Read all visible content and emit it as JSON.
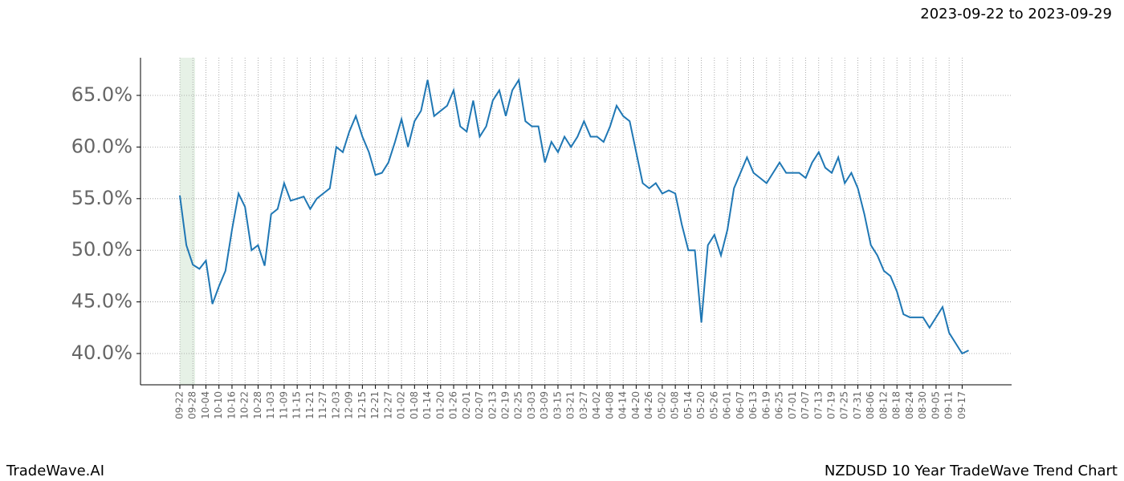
{
  "chart_data": {
    "type": "line",
    "header": "2023-09-22 to 2023-09-29",
    "brand": "TradeWave.AI",
    "title": "NZDUSD 10 Year TradeWave Trend Chart",
    "categories": [
      "09-22",
      null,
      "09-28",
      null,
      "10-04",
      null,
      "10-10",
      null,
      "10-16",
      null,
      "10-22",
      null,
      "10-28",
      null,
      "11-03",
      null,
      "11-09",
      null,
      "11-15",
      null,
      "11-21",
      null,
      "11-27",
      null,
      "12-03",
      null,
      "12-09",
      null,
      "12-15",
      null,
      "12-21",
      null,
      "12-27",
      null,
      "01-02",
      null,
      "01-08",
      null,
      "01-14",
      null,
      "01-20",
      null,
      "01-26",
      null,
      "02-01",
      null,
      "02-07",
      null,
      "02-13",
      null,
      "02-19",
      null,
      "02-25",
      null,
      "03-03",
      null,
      "03-09",
      null,
      "03-15",
      null,
      "03-21",
      null,
      "03-27",
      null,
      "04-02",
      null,
      "04-08",
      null,
      "04-14",
      null,
      "04-20",
      null,
      "04-26",
      null,
      "05-02",
      null,
      "05-08",
      null,
      "05-14",
      null,
      "05-20",
      null,
      "05-26",
      null,
      "06-01",
      null,
      "06-07",
      null,
      "06-13",
      null,
      "06-19",
      null,
      "06-25",
      null,
      "07-01",
      null,
      "07-07",
      null,
      "07-13",
      null,
      "07-19",
      null,
      "07-25",
      null,
      "07-31",
      null,
      "08-06",
      null,
      "08-12",
      null,
      "08-18",
      null,
      "08-24",
      null,
      "08-30",
      null,
      "09-05",
      null,
      "09-11",
      null,
      "09-17",
      null
    ],
    "series": [
      {
        "name": "NZDUSD",
        "color": "#1f77b4",
        "values": [
          55.3,
          50.5,
          48.6,
          48.2,
          49.0,
          44.8,
          46.5,
          48.0,
          52.0,
          55.5,
          54.2,
          50.0,
          50.5,
          48.5,
          53.5,
          54.0,
          56.5,
          54.8,
          55.0,
          55.2,
          54.0,
          55.0,
          55.5,
          56.0,
          60.0,
          59.5,
          61.5,
          63.0,
          61.0,
          59.5,
          57.3,
          57.5,
          58.5,
          60.5,
          62.7,
          60.0,
          62.5,
          63.5,
          66.5,
          63.0,
          63.5,
          64.0,
          65.5,
          62.0,
          61.5,
          64.5,
          61.0,
          62.0,
          64.5,
          65.5,
          63.0,
          65.5,
          66.5,
          62.5,
          62.0,
          62.0,
          58.5,
          60.5,
          59.5,
          61.0,
          60.0,
          61.0,
          62.5,
          61.0,
          61.0,
          60.5,
          62.0,
          64.0,
          63.0,
          62.5,
          59.5,
          56.5,
          56.0,
          56.5,
          55.5,
          55.8,
          55.5,
          52.5,
          50.0,
          50.0,
          43.0,
          50.5,
          51.5,
          49.5,
          52.0,
          56.0,
          57.5,
          59.0,
          57.5,
          57.0,
          56.5,
          57.5,
          58.5,
          57.5,
          57.5,
          57.5,
          57.0,
          58.5,
          59.5,
          58.0,
          57.5,
          59.0,
          56.5,
          57.5,
          56.0,
          53.5,
          50.5,
          49.5,
          48.0,
          47.5,
          46.0,
          43.8,
          43.5,
          43.5,
          43.5,
          42.5,
          43.5,
          44.5,
          42.0,
          41.0,
          40.0,
          40.3
        ]
      }
    ],
    "ylim": [
      36.97,
      68.65
    ],
    "yticks": [
      {
        "value": 40,
        "label": "40.0%"
      },
      {
        "value": 45,
        "label": "45.0%"
      },
      {
        "value": 50,
        "label": "50.0%"
      },
      {
        "value": 55,
        "label": "55.0%"
      },
      {
        "value": 60,
        "label": "60.0%"
      },
      {
        "value": 65,
        "label": "65.0%"
      }
    ],
    "grid": true
  }
}
